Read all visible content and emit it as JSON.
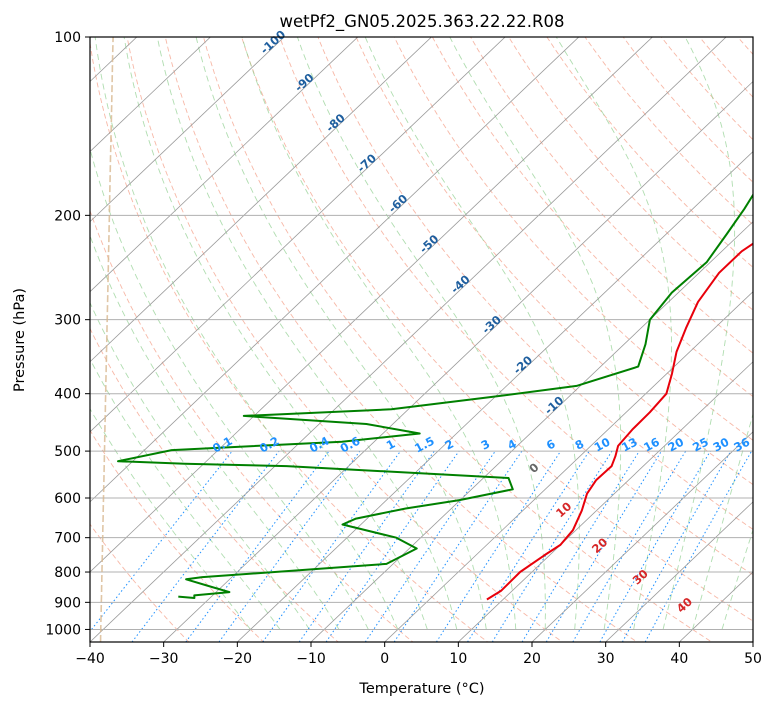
{
  "chart_data": {
    "type": "line",
    "title": "wetPf2_GN05.2025.363.22.22.R08",
    "xlabel": "Temperature (°C)",
    "ylabel": "Pressure (hPa)",
    "xlim": [
      -40,
      50
    ],
    "ylim": [
      1050,
      100
    ],
    "y_scale": "log",
    "x_ticks": [
      -40,
      -30,
      -20,
      -10,
      0,
      10,
      20,
      30,
      40,
      50
    ],
    "x_tick_labels": [
      "−40",
      "−30",
      "−20",
      "−10",
      "0",
      "10",
      "20",
      "30",
      "40",
      "50"
    ],
    "y_ticks": [
      1000,
      900,
      800,
      700,
      600,
      500,
      400,
      300,
      200,
      100
    ],
    "y_tick_labels": [
      "1000",
      "900",
      "800",
      "700",
      "600",
      "500",
      "400",
      "300",
      "200",
      "100"
    ],
    "grid": true,
    "colors": {
      "temperature": "#e8000b",
      "dewpoint": "#008000",
      "isotherm_labels": "#1f5f9f",
      "mixing_ratio": "#1e90ff",
      "moist_adiabat": "#d62728",
      "dry_adiabat": "#f08060",
      "moist_adiabat_guides": "#2ca02c",
      "skew_isotherm": "#999999"
    },
    "series": [
      {
        "role": "temperature",
        "points": [
          [
            7.8,
            890
          ],
          [
            8.5,
            860
          ],
          [
            8.4,
            800
          ],
          [
            9.3,
            750
          ],
          [
            10.0,
            720
          ],
          [
            9.6,
            680
          ],
          [
            8.0,
            630
          ],
          [
            6.3,
            590
          ],
          [
            5.6,
            560
          ],
          [
            5.7,
            530
          ],
          [
            4.8,
            510
          ],
          [
            3.7,
            490
          ],
          [
            3.3,
            460
          ],
          [
            3.2,
            430
          ],
          [
            2.8,
            400
          ],
          [
            0.7,
            370
          ],
          [
            -1.8,
            340
          ],
          [
            -3.9,
            310
          ],
          [
            -6.0,
            280
          ],
          [
            -7.3,
            250
          ],
          [
            -7.3,
            230
          ],
          [
            -5.9,
            210
          ],
          [
            -3.5,
            196
          ],
          [
            0.4,
            186
          ],
          [
            4.6,
            177
          ],
          [
            8.8,
            167
          ],
          [
            12.2,
            155
          ],
          [
            14.4,
            143
          ],
          [
            16.7,
            131
          ],
          [
            18.3,
            121
          ],
          [
            21.2,
            113
          ],
          [
            23.0,
            107
          ],
          [
            24.5,
            102
          ],
          [
            25.0,
            100
          ]
        ]
      },
      {
        "role": "dewpoint",
        "points": [
          [
            -34.5,
            880
          ],
          [
            -32.1,
            885
          ],
          [
            -32.5,
            876
          ],
          [
            -28.2,
            865
          ],
          [
            -31.3,
            848
          ],
          [
            -35.9,
            823
          ],
          [
            -34.0,
            816
          ],
          [
            -24.9,
            800
          ],
          [
            -10.9,
            775
          ],
          [
            -9.0,
            730
          ],
          [
            -13.3,
            700
          ],
          [
            -22.5,
            665
          ],
          [
            -21.5,
            650
          ],
          [
            -16.2,
            625
          ],
          [
            -10.1,
            605
          ],
          [
            -4.4,
            580
          ],
          [
            -6.6,
            555
          ],
          [
            -38.4,
            530
          ],
          [
            -52.6,
            525
          ],
          [
            -62.0,
            520
          ],
          [
            -56.3,
            498
          ],
          [
            -34.4,
            482
          ],
          [
            -25.0,
            467
          ],
          [
            -33.6,
            450
          ],
          [
            -51.4,
            436
          ],
          [
            -32.3,
            425
          ],
          [
            -20.4,
            405
          ],
          [
            -10.5,
            388
          ],
          [
            -4.9,
            360
          ],
          [
            -7.1,
            330
          ],
          [
            -10.0,
            300
          ],
          [
            -10.9,
            270
          ],
          [
            -10.5,
            240
          ],
          [
            -11.8,
            215
          ],
          [
            -13.0,
            195
          ],
          [
            -14.2,
            180
          ],
          [
            -11.8,
            160
          ],
          [
            -7.7,
            140
          ],
          [
            -3.3,
            124
          ],
          [
            0.4,
            109
          ],
          [
            2.6,
            100
          ]
        ]
      }
    ],
    "isotherm_labels": [
      "-100",
      "-90",
      "-80",
      "-70",
      "-60",
      "-50",
      "-40",
      "-30",
      "-20",
      "-10"
    ],
    "isotherm_label_values": [
      -100,
      -90,
      -80,
      -70,
      -60,
      -50,
      -40,
      -30,
      -20,
      -10
    ],
    "mixing_ratio_labels": [
      "0.1",
      "0.2",
      "0.4",
      "0.6",
      "1",
      "1.5",
      "2",
      "3",
      "4",
      "6",
      "8",
      "10",
      "13",
      "16",
      "20",
      "25",
      "30",
      "36"
    ],
    "mixing_ratio_values": [
      0.1,
      0.2,
      0.4,
      0.6,
      1,
      1.5,
      2,
      3,
      4,
      6,
      8,
      10,
      13,
      16,
      20,
      25,
      30,
      36
    ],
    "moist_adiabat_labels": [
      "0",
      "10",
      "20",
      "30",
      "40"
    ],
    "moist_adiabat_values": [
      0,
      10,
      20,
      30,
      40
    ]
  }
}
